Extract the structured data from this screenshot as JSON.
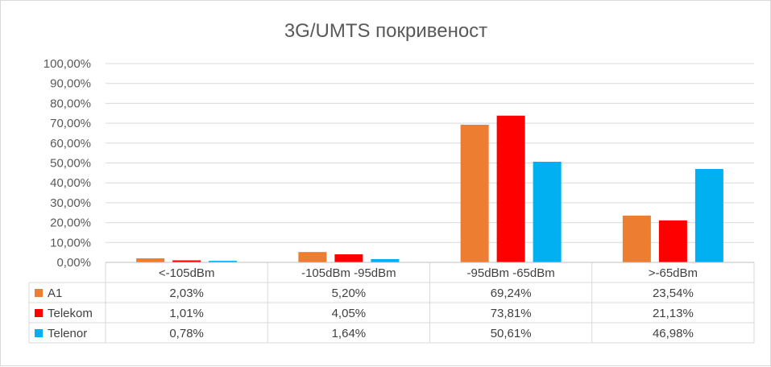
{
  "chart_data": {
    "type": "bar",
    "title": "3G/UMTS покривеност",
    "categories": [
      "<-105dBm",
      "-105dBm -95dBm",
      "-95dBm -65dBm",
      ">-65dBm"
    ],
    "series": [
      {
        "name": "A1",
        "color": "#ed7d31",
        "values": [
          2.03,
          5.2,
          69.24,
          23.54
        ],
        "labels": [
          "2,03%",
          "5,20%",
          "69,24%",
          "23,54%"
        ]
      },
      {
        "name": "Telekom",
        "color": "#ff0000",
        "values": [
          1.01,
          4.05,
          73.81,
          21.13
        ],
        "labels": [
          "1,01%",
          "4,05%",
          "73,81%",
          "21,13%"
        ]
      },
      {
        "name": "Telenor",
        "color": "#00b0f0",
        "values": [
          0.78,
          1.64,
          50.61,
          46.98
        ],
        "labels": [
          "0,78%",
          "1,64%",
          "50,61%",
          "46,98%"
        ]
      }
    ],
    "ylim": [
      0,
      100
    ],
    "yticks": [
      0,
      10,
      20,
      30,
      40,
      50,
      60,
      70,
      80,
      90,
      100
    ],
    "ytick_labels": [
      "0,00%",
      "10,00%",
      "20,00%",
      "30,00%",
      "40,00%",
      "50,00%",
      "60,00%",
      "70,00%",
      "80,00%",
      "90,00%",
      "100,00%"
    ],
    "grid": true,
    "legend": "data-table",
    "xlabel": "",
    "ylabel": ""
  }
}
